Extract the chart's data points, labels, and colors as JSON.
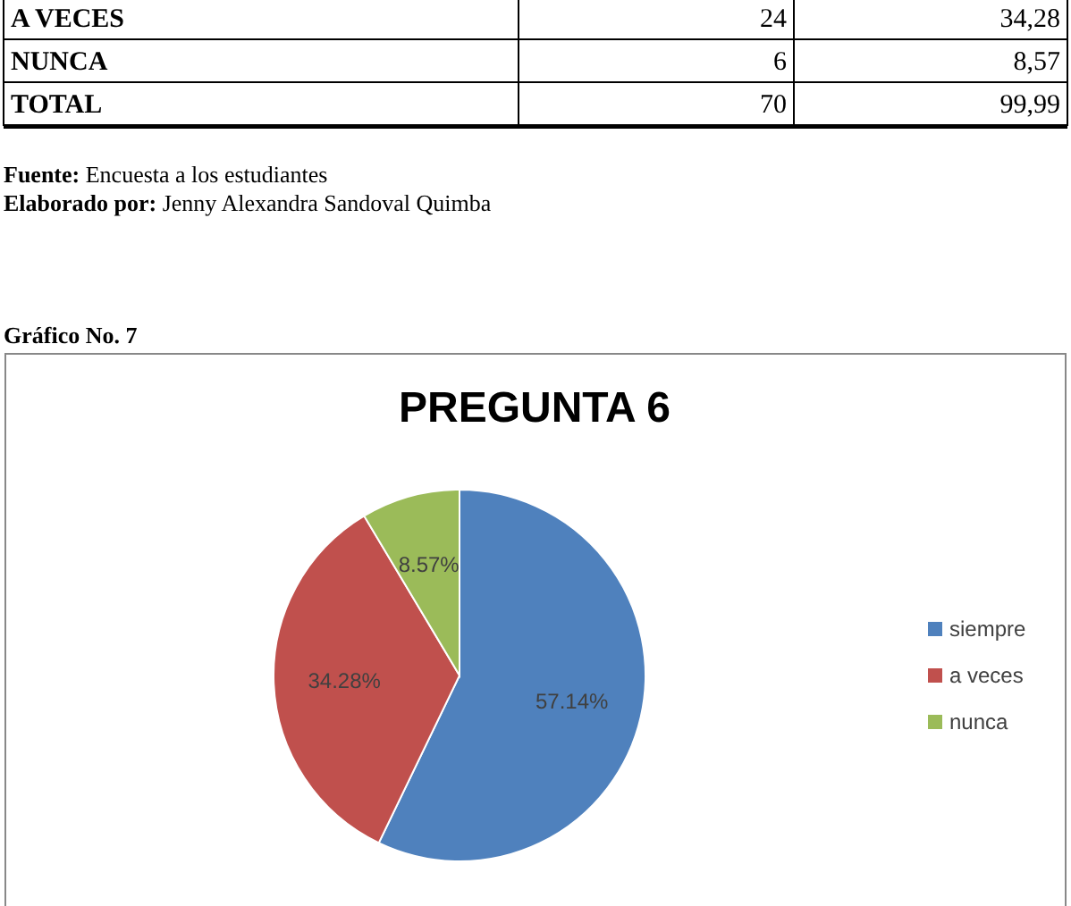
{
  "chart_data": {
    "type": "pie",
    "title": "PREGUNTA 6",
    "categories": [
      "siempre",
      "a veces",
      "nunca"
    ],
    "values": [
      57.14,
      34.28,
      8.57
    ],
    "colors": [
      "#4f81bd",
      "#c0504d",
      "#9bbb59"
    ],
    "value_labels": [
      "57.14%",
      "34.28%",
      "8.57%"
    ],
    "legend": "right",
    "annotations": [
      "A VECES",
      "24",
      "34,28",
      "NUNCA",
      "6",
      "8,57",
      "TOTAL",
      "70",
      "99,99",
      "Fuente: Encuesta a los estudiantes",
      "Elaborado por: Jenny Alexandra Sandoval Quimba",
      "Gráfico No. 7"
    ]
  }
}
